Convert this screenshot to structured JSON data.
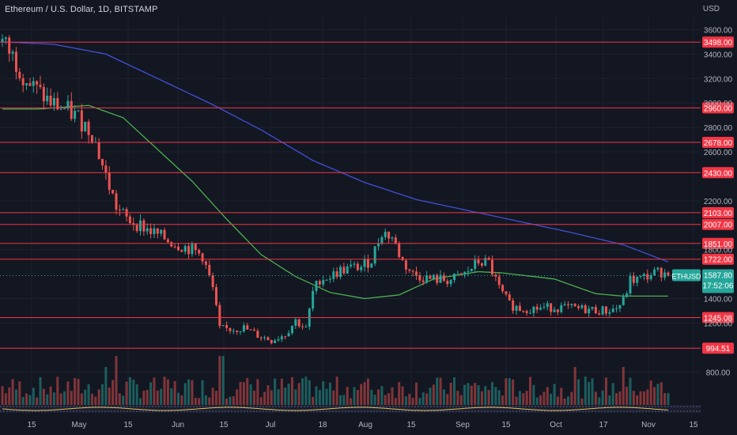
{
  "header": {
    "title": "Ethereum / U.S. Dollar, 1D, BITSTAMP",
    "currency": "USD"
  },
  "colors": {
    "background": "#131722",
    "up": "#26a69a",
    "down": "#ef5350",
    "level_line": "#f23645",
    "ma_long": "#3f51d8",
    "ma_short": "#4caf50",
    "grid": "#1e222d"
  },
  "chart_data": {
    "type": "candlestick",
    "symbol": "ETHUSD",
    "last_price": "1587.80",
    "countdown": "17:52:06",
    "ylim": [
      530,
      3700
    ],
    "y_ticks": [
      {
        "v": 3600,
        "label": "3600.00"
      },
      {
        "v": 3400,
        "label": "3400.00"
      },
      {
        "v": 3200,
        "label": "3200.00"
      },
      {
        "v": 3000,
        "label": "3000.00"
      },
      {
        "v": 2800,
        "label": "2800.00"
      },
      {
        "v": 2600,
        "label": "2600.00"
      },
      {
        "v": 2200,
        "label": "2200.00"
      },
      {
        "v": 1800,
        "label": "1800.00"
      },
      {
        "v": 1400,
        "label": "1400.00"
      },
      {
        "v": 1200,
        "label": "1200.00"
      },
      {
        "v": 800,
        "label": "800.00"
      }
    ],
    "levels": [
      {
        "v": 3498,
        "label": "3498.00"
      },
      {
        "v": 2960,
        "label": "2960.00"
      },
      {
        "v": 2678,
        "label": "2678.00"
      },
      {
        "v": 2430,
        "label": "2430.00"
      },
      {
        "v": 2103,
        "label": "2103.00"
      },
      {
        "v": 2007,
        "label": "2007.00"
      },
      {
        "v": 1851,
        "label": "1851.00"
      },
      {
        "v": 1722,
        "label": "1722.00"
      },
      {
        "v": 1245.08,
        "label": "1245.08"
      },
      {
        "v": 994.51,
        "label": "994.51"
      }
    ],
    "x_ticks": [
      "15",
      "May",
      "15",
      "Jun",
      "15",
      "Jul",
      "18",
      "Aug",
      "15",
      "Sep",
      "15",
      "Oct",
      "17",
      "Nov",
      "15"
    ],
    "price_anchors": [
      [
        0,
        3500
      ],
      [
        3,
        3380
      ],
      [
        8,
        3150
      ],
      [
        14,
        3000
      ],
      [
        18,
        2950
      ],
      [
        22,
        2880
      ],
      [
        26,
        2760
      ],
      [
        30,
        2400
      ],
      [
        33,
        2150
      ],
      [
        36,
        2050
      ],
      [
        40,
        2000
      ],
      [
        45,
        1920
      ],
      [
        50,
        1850
      ],
      [
        55,
        1800
      ],
      [
        58,
        1750
      ],
      [
        61,
        1480
      ],
      [
        63,
        1150
      ],
      [
        66,
        1150
      ],
      [
        70,
        1160
      ],
      [
        74,
        1100
      ],
      [
        78,
        1060
      ],
      [
        82,
        1110
      ],
      [
        85,
        1220
      ],
      [
        88,
        1150
      ],
      [
        90,
        1450
      ],
      [
        92,
        1560
      ],
      [
        95,
        1580
      ],
      [
        98,
        1630
      ],
      [
        101,
        1650
      ],
      [
        104,
        1660
      ],
      [
        107,
        1720
      ],
      [
        110,
        1950
      ],
      [
        113,
        1900
      ],
      [
        116,
        1700
      ],
      [
        119,
        1600
      ],
      [
        124,
        1560
      ],
      [
        130,
        1550
      ],
      [
        134,
        1600
      ],
      [
        138,
        1700
      ],
      [
        141,
        1690
      ],
      [
        144,
        1480
      ],
      [
        147,
        1350
      ],
      [
        150,
        1320
      ],
      [
        155,
        1320
      ],
      [
        160,
        1330
      ],
      [
        165,
        1320
      ],
      [
        170,
        1310
      ],
      [
        175,
        1300
      ],
      [
        178,
        1320
      ],
      [
        180,
        1380
      ],
      [
        182,
        1550
      ],
      [
        185,
        1560
      ],
      [
        188,
        1600
      ],
      [
        191,
        1620
      ],
      [
        193,
        1587.8
      ]
    ],
    "ma_long_anchors": [
      [
        0,
        3500
      ],
      [
        15,
        3480
      ],
      [
        30,
        3400
      ],
      [
        45,
        3200
      ],
      [
        60,
        3000
      ],
      [
        75,
        2780
      ],
      [
        90,
        2530
      ],
      [
        105,
        2350
      ],
      [
        120,
        2210
      ],
      [
        135,
        2120
      ],
      [
        150,
        2030
      ],
      [
        165,
        1940
      ],
      [
        180,
        1840
      ],
      [
        193,
        1700
      ]
    ],
    "ma_short_anchors": [
      [
        0,
        2950
      ],
      [
        10,
        2950
      ],
      [
        25,
        2980
      ],
      [
        35,
        2880
      ],
      [
        45,
        2620
      ],
      [
        55,
        2360
      ],
      [
        65,
        2050
      ],
      [
        75,
        1760
      ],
      [
        85,
        1580
      ],
      [
        95,
        1450
      ],
      [
        105,
        1400
      ],
      [
        115,
        1430
      ],
      [
        125,
        1560
      ],
      [
        138,
        1620
      ],
      [
        145,
        1610
      ],
      [
        160,
        1560
      ],
      [
        172,
        1440
      ],
      [
        180,
        1420
      ],
      [
        186,
        1420
      ],
      [
        193,
        1420
      ]
    ]
  }
}
